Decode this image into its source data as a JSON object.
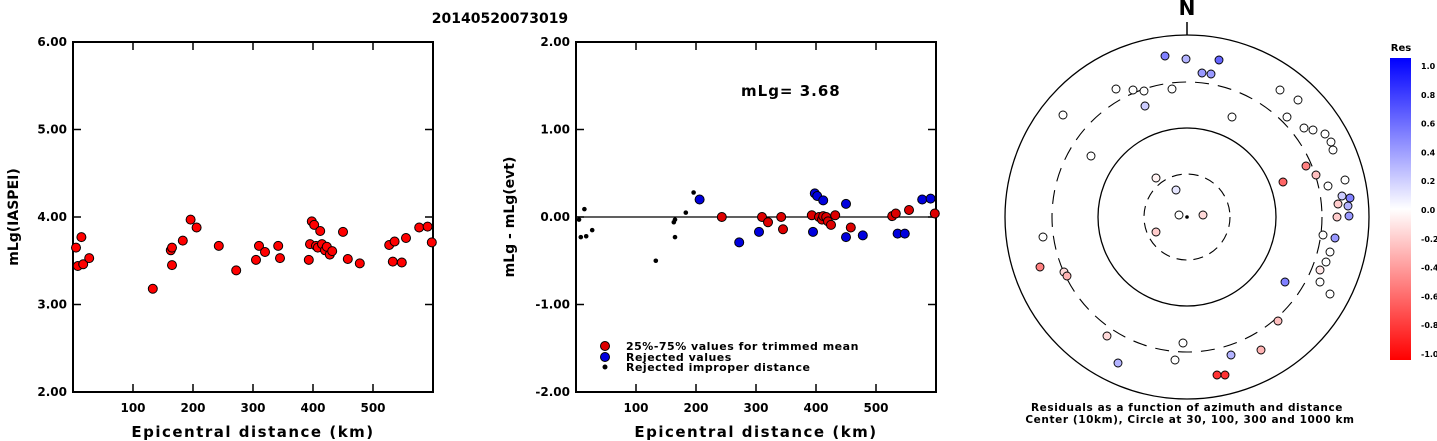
{
  "page_title": "20140520073019",
  "chart_data": [
    {
      "type": "scatter",
      "name": "magnitude-vs-distance",
      "xlabel": "Epicentral distance (km)",
      "ylabel": "mLg(IASPEI)",
      "xlim": [
        0,
        600
      ],
      "ylim": [
        2.0,
        6.0
      ],
      "xticks": [
        "100",
        "200",
        "300",
        "400",
        "500"
      ],
      "yticks": [
        "2.00",
        "3.00",
        "4.00",
        "5.00",
        "6.00"
      ],
      "grid": false,
      "marker_color": "#ff0000",
      "points": [
        [
          5,
          3.65
        ],
        [
          8,
          3.44
        ],
        [
          14,
          3.77
        ],
        [
          17,
          3.46
        ],
        [
          27,
          3.53
        ],
        [
          133,
          3.18
        ],
        [
          163,
          3.62
        ],
        [
          165,
          3.65
        ],
        [
          165,
          3.45
        ],
        [
          183,
          3.73
        ],
        [
          196,
          3.97
        ],
        [
          206,
          3.88
        ],
        [
          243,
          3.67
        ],
        [
          272,
          3.39
        ],
        [
          305,
          3.51
        ],
        [
          310,
          3.67
        ],
        [
          320,
          3.6
        ],
        [
          342,
          3.67
        ],
        [
          345,
          3.53
        ],
        [
          393,
          3.51
        ],
        [
          395,
          3.69
        ],
        [
          398,
          3.95
        ],
        [
          402,
          3.91
        ],
        [
          405,
          3.67
        ],
        [
          408,
          3.65
        ],
        [
          412,
          3.84
        ],
        [
          415,
          3.69
        ],
        [
          420,
          3.62
        ],
        [
          423,
          3.66
        ],
        [
          428,
          3.57
        ],
        [
          432,
          3.61
        ],
        [
          450,
          3.83
        ],
        [
          458,
          3.52
        ],
        [
          478,
          3.47
        ],
        [
          527,
          3.68
        ],
        [
          533,
          3.49
        ],
        [
          536,
          3.72
        ],
        [
          548,
          3.48
        ],
        [
          555,
          3.76
        ],
        [
          577,
          3.88
        ],
        [
          591,
          3.89
        ],
        [
          598,
          3.71
        ]
      ]
    },
    {
      "type": "scatter",
      "name": "residual-vs-distance",
      "xlabel": "Epicentral distance (km)",
      "ylabel": "mLg - mLg(evt)",
      "xlim": [
        0,
        600
      ],
      "ylim": [
        -2.0,
        2.0
      ],
      "xticks": [
        "100",
        "200",
        "300",
        "400",
        "500"
      ],
      "yticks": [
        "-2.00",
        "-1.00",
        "0.00",
        "1.00",
        "2.00"
      ],
      "annotation": "mLg= 3.68",
      "legend": [
        {
          "label": "25%-75% values for trimmed mean",
          "color": "#dd0000"
        },
        {
          "label": "Rejected values",
          "color": "#0000dd"
        },
        {
          "label": "Rejected improper distance",
          "color": "#000000"
        }
      ],
      "legend_position": "bottom-left",
      "trimmed": [
        [
          243,
          0.0
        ],
        [
          310,
          0.0
        ],
        [
          320,
          -0.06
        ],
        [
          342,
          0.0
        ],
        [
          345,
          -0.14
        ],
        [
          393,
          0.02
        ],
        [
          405,
          0.0
        ],
        [
          410,
          -0.03
        ],
        [
          412,
          0.01
        ],
        [
          417,
          0.0
        ],
        [
          420,
          -0.05
        ],
        [
          425,
          -0.09
        ],
        [
          432,
          0.02
        ],
        [
          458,
          -0.12
        ],
        [
          527,
          0.01
        ],
        [
          533,
          0.04
        ],
        [
          555,
          0.08
        ],
        [
          598,
          0.04
        ]
      ],
      "rejected": [
        [
          206,
          0.2
        ],
        [
          272,
          -0.29
        ],
        [
          305,
          -0.17
        ],
        [
          398,
          0.27
        ],
        [
          402,
          0.24
        ],
        [
          395,
          -0.17
        ],
        [
          412,
          0.19
        ],
        [
          450,
          0.15
        ],
        [
          450,
          -0.23
        ],
        [
          478,
          -0.21
        ],
        [
          536,
          -0.19
        ],
        [
          548,
          -0.19
        ],
        [
          577,
          0.2
        ],
        [
          591,
          0.21
        ]
      ],
      "improper": [
        [
          5,
          -0.03
        ],
        [
          8,
          -0.23
        ],
        [
          14,
          0.09
        ],
        [
          17,
          -0.22
        ],
        [
          27,
          -0.15
        ],
        [
          133,
          -0.5
        ],
        [
          163,
          -0.06
        ],
        [
          165,
          -0.03
        ],
        [
          165,
          -0.23
        ],
        [
          183,
          0.05
        ],
        [
          196,
          0.28
        ]
      ]
    },
    {
      "type": "polar",
      "name": "residual-azimuth-map",
      "north_label": "N",
      "caption_lines": [
        "Residuals as a function of azimuth and distance",
        "Center (10km), Circle at 30, 100, 300 and 1000 km"
      ],
      "colorbar_title": "Res",
      "colorbar_ticks": [
        "1.0",
        "0.8",
        "0.6",
        "0.4",
        "0.2",
        "0.0",
        "-0.2",
        "-0.4",
        "-0.6",
        "-0.8",
        "-1.0"
      ],
      "stations": [
        [
          1179,
          215,
          0.0
        ],
        [
          1203,
          215,
          -0.15
        ],
        [
          1176,
          190,
          0.1
        ],
        [
          1156,
          178,
          -0.05
        ],
        [
          1156,
          232,
          -0.2
        ],
        [
          1165,
          56,
          0.5
        ],
        [
          1186,
          59,
          0.3
        ],
        [
          1202,
          73,
          0.4
        ],
        [
          1211,
          74,
          0.4
        ],
        [
          1219,
          60,
          0.6
        ],
        [
          1144,
          91,
          0.0
        ],
        [
          1116,
          89,
          0.0
        ],
        [
          1133,
          90,
          0.0
        ],
        [
          1172,
          89,
          0.0
        ],
        [
          1145,
          106,
          0.2
        ],
        [
          1063,
          115,
          0.0
        ],
        [
          1091,
          156,
          0.0
        ],
        [
          1232,
          117,
          0.0
        ],
        [
          1280,
          90,
          0.0
        ],
        [
          1298,
          100,
          0.0
        ],
        [
          1287,
          117,
          0.0
        ],
        [
          1304,
          128,
          0.0
        ],
        [
          1313,
          130,
          0.0
        ],
        [
          1325,
          134,
          0.0
        ],
        [
          1331,
          142,
          0.0
        ],
        [
          1333,
          150,
          0.0
        ],
        [
          1306,
          166,
          -0.5
        ],
        [
          1316,
          175,
          -0.25
        ],
        [
          1283,
          182,
          -0.6
        ],
        [
          1345,
          180,
          0.0
        ],
        [
          1328,
          186,
          0.0
        ],
        [
          1342,
          196,
          0.2
        ],
        [
          1350,
          198,
          0.5
        ],
        [
          1348,
          206,
          0.3
        ],
        [
          1349,
          216,
          0.4
        ],
        [
          1338,
          204,
          -0.2
        ],
        [
          1337,
          217,
          -0.2
        ],
        [
          1335,
          238,
          0.4
        ],
        [
          1323,
          235,
          0.0
        ],
        [
          1330,
          252,
          0.0
        ],
        [
          1326,
          262,
          0.0
        ],
        [
          1320,
          270,
          -0.1
        ],
        [
          1320,
          282,
          0.0
        ],
        [
          1285,
          282,
          0.5
        ],
        [
          1330,
          294,
          0.0
        ],
        [
          1278,
          321,
          -0.25
        ],
        [
          1043,
          237,
          0.0
        ],
        [
          1064,
          272,
          -0.15
        ],
        [
          1040,
          267,
          -0.5
        ],
        [
          1067,
          276,
          -0.3
        ],
        [
          1107,
          336,
          -0.15
        ],
        [
          1183,
          343,
          0.0
        ],
        [
          1175,
          360,
          0.0
        ],
        [
          1118,
          363,
          0.3
        ],
        [
          1231,
          355,
          0.3
        ],
        [
          1261,
          350,
          -0.3
        ],
        [
          1217,
          375,
          -0.8
        ],
        [
          1225,
          375,
          -0.8
        ]
      ]
    }
  ]
}
